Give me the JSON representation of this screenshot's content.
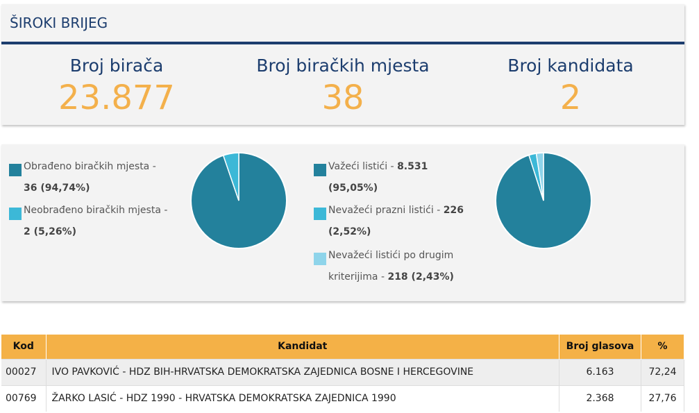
{
  "header": {
    "title": "ŠIROKI BRIJEG"
  },
  "stats": [
    {
      "label": "Broj birača",
      "value": "23.877"
    },
    {
      "label": "Broj biračkih mjesta",
      "value": "38"
    },
    {
      "label": "Broj kandidata",
      "value": "2"
    }
  ],
  "colors": {
    "navy": "#1c3d6e",
    "orange": "#f3b04b",
    "teal_dark": "#23819c",
    "teal_mid": "#3cb8d7",
    "teal_light": "#8ed4ea"
  },
  "polling_legend": [
    {
      "text": "Obrađeno biračkih mjesta - ",
      "value": "36 (94,74%)"
    },
    {
      "text": "Neobrađeno biračkih mjesta - ",
      "value": "2 (5,26%)"
    }
  ],
  "ballots_legend": [
    {
      "text": "Važeći listići - ",
      "value": "8.531",
      "pct": "(95,05%)"
    },
    {
      "text": "Nevažeći prazni listići - ",
      "value": "226",
      "pct": "(2,52%)"
    },
    {
      "text": "Nevažeći listići po drugim",
      "text2": "kriterijima - ",
      "value": "218 (2,43%)"
    }
  ],
  "pie_polling": {
    "values": [
      94.74,
      5.26
    ]
  },
  "pie_ballots": {
    "values": [
      95.05,
      2.52,
      2.43
    ]
  },
  "table": {
    "headers": {
      "code": "Kod",
      "candidate": "Kandidat",
      "votes": "Broj glasova",
      "pct": "%"
    },
    "rows": [
      {
        "code": "00027",
        "candidate": "IVO PAVKOVIĆ - HDZ BIH-HRVATSKA DEMOKRATSKA ZAJEDNICA BOSNE I HERCEGOVINE",
        "votes": "6.163",
        "pct": "72,24"
      },
      {
        "code": "00769",
        "candidate": "ŽARKO LASIĆ - HDZ 1990 - HRVATSKA DEMOKRATSKA ZAJEDNICA 1990",
        "votes": "2.368",
        "pct": "27,76"
      }
    ]
  }
}
